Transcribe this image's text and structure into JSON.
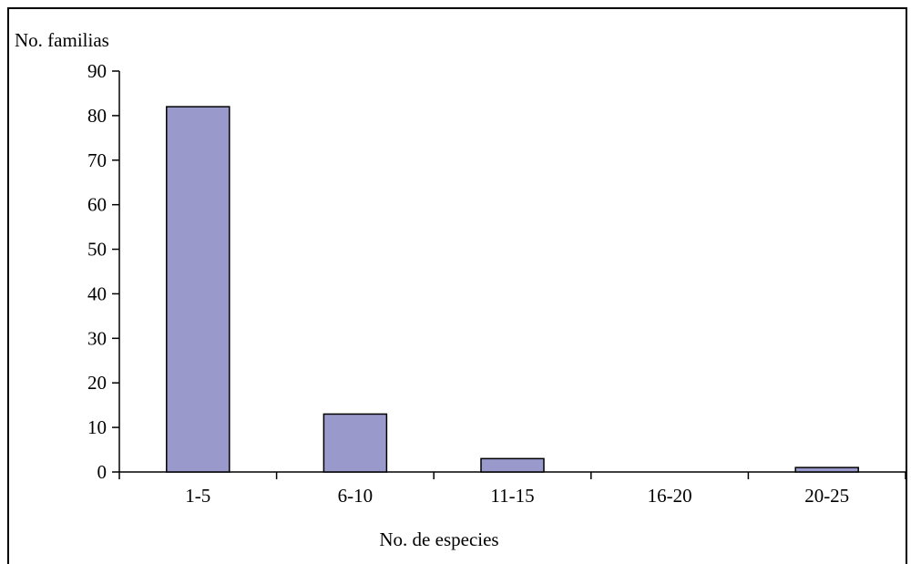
{
  "chart_data": {
    "type": "bar",
    "categories": [
      "1-5",
      "6-10",
      "11-15",
      "16-20",
      "20-25"
    ],
    "values": [
      82,
      13,
      3,
      0,
      1
    ],
    "ylabel": "No. familias",
    "xlabel": "No. de especies",
    "ylim": [
      0,
      90
    ],
    "yticks": [
      "0",
      "10",
      "20",
      "30",
      "40",
      "50",
      "60",
      "70",
      "80",
      "90"
    ],
    "grid": false,
    "legend": "none",
    "bar_color": "#9999cc",
    "bar_edge_color": "#000000"
  }
}
